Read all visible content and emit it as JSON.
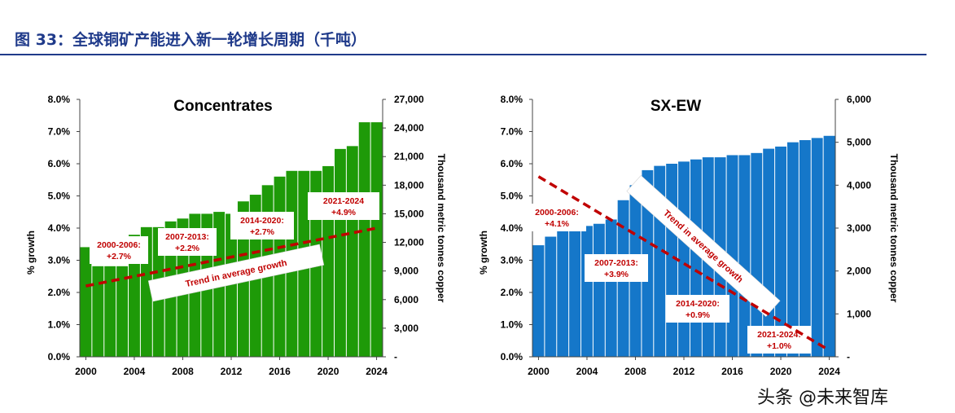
{
  "figure": {
    "title": "图 33：全球铜矿产能进入新一轮增长周期（千吨）",
    "watermark": "头条 @未来智库"
  },
  "colors": {
    "concentrates_bar": "#1e9a08",
    "sxew_bar": "#1577c9",
    "trend": "#c00000",
    "segment_label": "#c00000"
  },
  "chart_data": [
    {
      "type": "bar",
      "title": "Concentrates",
      "categories": [
        2000,
        2001,
        2002,
        2003,
        2004,
        2005,
        2006,
        2007,
        2008,
        2009,
        2010,
        2011,
        2012,
        2013,
        2014,
        2015,
        2016,
        2017,
        2018,
        2019,
        2020,
        2021,
        2022,
        2023,
        2024
      ],
      "values": [
        11500,
        9500,
        9500,
        9500,
        12800,
        13600,
        13600,
        14200,
        14500,
        15000,
        15000,
        15200,
        15000,
        16300,
        17000,
        18000,
        18900,
        19500,
        19500,
        19500,
        20000,
        21800,
        22100,
        24600,
        24600
      ],
      "y2label": "Thousand metric tonnes copper",
      "y2lim": [
        0,
        27000
      ],
      "y2ticks": [
        "-",
        "3,000",
        "6,000",
        "9,000",
        "12,000",
        "15,000",
        "18,000",
        "21,000",
        "24,000",
        "27,000"
      ],
      "ylabel": "% growth",
      "ylim": [
        0,
        8
      ],
      "yticks": [
        "0.0%",
        "1.0%",
        "2.0%",
        "3.0%",
        "4.0%",
        "5.0%",
        "6.0%",
        "7.0%",
        "8.0%"
      ],
      "xticks": [
        "2000",
        "2004",
        "2008",
        "2012",
        "2016",
        "2020",
        "2024"
      ],
      "trend": {
        "x": [
          2000,
          2024
        ],
        "y": [
          2.2,
          4.0
        ]
      },
      "trend_label": "Trend in average growth",
      "segments": [
        {
          "period": "2000-2006:",
          "value": "+2.7%"
        },
        {
          "period": "2007-2013:",
          "value": "+2.2%"
        },
        {
          "period": "2014-2020:",
          "value": "+2.7%"
        },
        {
          "period": "2021-2024",
          "value": "+4.9%"
        }
      ]
    },
    {
      "type": "bar",
      "title": "SX-EW",
      "categories": [
        2000,
        2001,
        2002,
        2003,
        2004,
        2005,
        2006,
        2007,
        2008,
        2009,
        2010,
        2011,
        2012,
        2013,
        2014,
        2015,
        2016,
        2017,
        2018,
        2019,
        2020,
        2021,
        2022,
        2023,
        2024
      ],
      "values": [
        2600,
        2800,
        3000,
        3100,
        3050,
        3100,
        3200,
        3650,
        4000,
        4350,
        4450,
        4500,
        4550,
        4600,
        4650,
        4650,
        4700,
        4700,
        4750,
        4850,
        4900,
        5000,
        5050,
        5100,
        5150
      ],
      "y2label": "Thousand metric tonnes copper",
      "y2lim": [
        0,
        6000
      ],
      "y2ticks": [
        "-",
        "1,000",
        "2,000",
        "3,000",
        "4,000",
        "5,000",
        "6,000"
      ],
      "ylabel": "% growth",
      "ylim": [
        0,
        8
      ],
      "yticks": [
        "0.0%",
        "1.0%",
        "2.0%",
        "3.0%",
        "4.0%",
        "5.0%",
        "6.0%",
        "7.0%",
        "8.0%"
      ],
      "xticks": [
        "2000",
        "2004",
        "2008",
        "2012",
        "2016",
        "2020",
        "2024"
      ],
      "trend": {
        "x": [
          2000,
          2024
        ],
        "y": [
          5.6,
          0.2
        ]
      },
      "trend_label": "Trend in average growth",
      "segments": [
        {
          "period": "2000-2006:",
          "value": "+4.1%"
        },
        {
          "period": "2007-2013:",
          "value": "+3.9%"
        },
        {
          "period": "2014-2020:",
          "value": "+0.9%"
        },
        {
          "period": "2021-2024:",
          "value": "+1.0%"
        }
      ]
    }
  ]
}
